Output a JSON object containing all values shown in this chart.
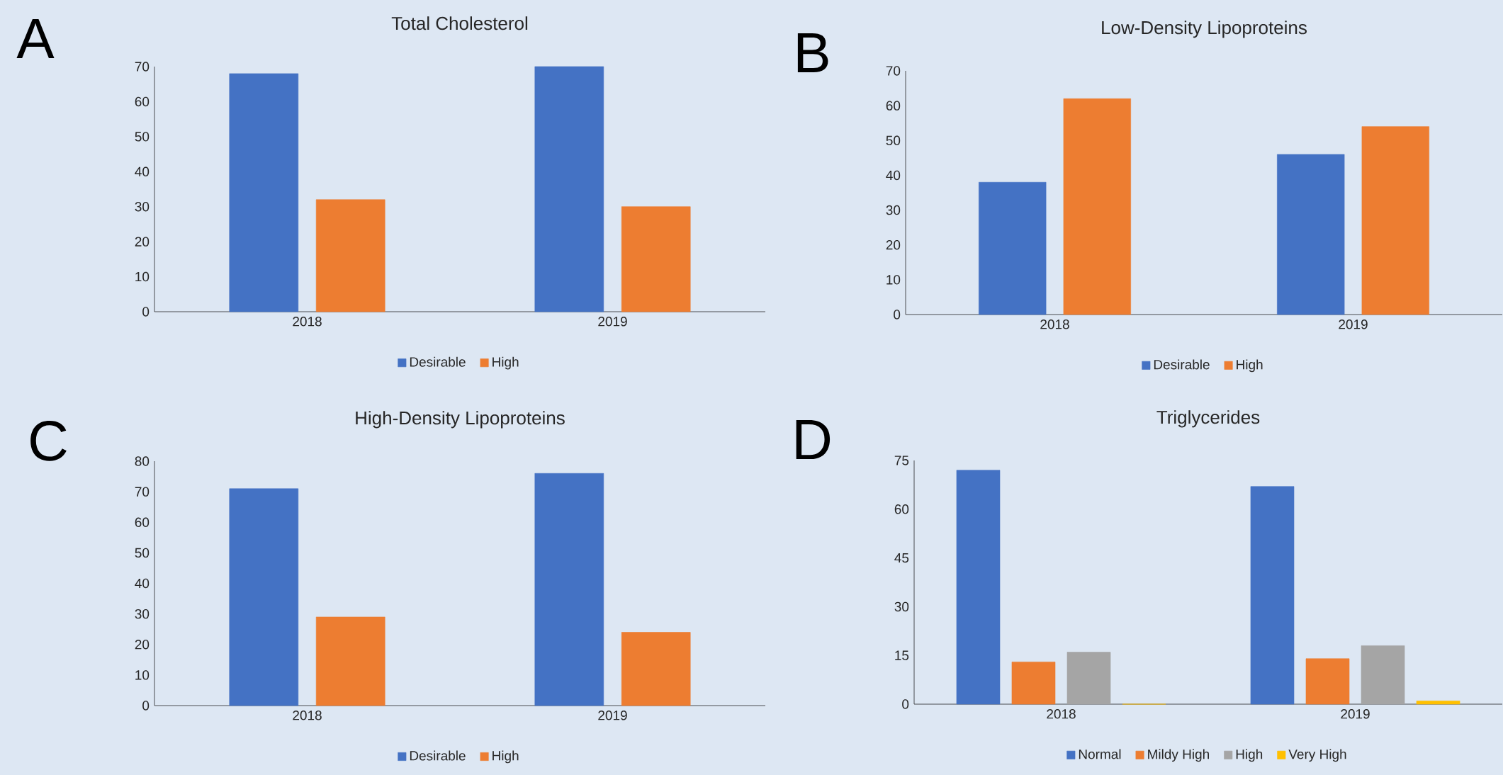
{
  "chart_data": [
    {
      "type": "bar",
      "title": "Total Cholesterol",
      "annotations": [
        "A"
      ],
      "categories": [
        "2018",
        "2019"
      ],
      "ylim": [
        0,
        70
      ],
      "yticks": [
        0,
        10,
        20,
        30,
        40,
        50,
        60,
        70
      ],
      "legend": "bottom",
      "series": [
        {
          "name": "Desirable",
          "color": "#4472c4",
          "values": [
            68,
            70
          ]
        },
        {
          "name": "High",
          "color": "#ed7d31",
          "values": [
            32,
            30
          ]
        }
      ]
    },
    {
      "type": "bar",
      "title": "Low-Density Lipoproteins",
      "annotations": [
        "B"
      ],
      "categories": [
        "2018",
        "2019"
      ],
      "ylim": [
        0,
        70
      ],
      "yticks": [
        0,
        10,
        20,
        30,
        40,
        50,
        60,
        70
      ],
      "legend": "bottom",
      "series": [
        {
          "name": "Desirable",
          "color": "#4472c4",
          "values": [
            38,
            46
          ]
        },
        {
          "name": "High",
          "color": "#ed7d31",
          "values": [
            62,
            54
          ]
        }
      ]
    },
    {
      "type": "bar",
      "title": "High-Density Lipoproteins",
      "annotations": [
        "C"
      ],
      "categories": [
        "2018",
        "2019"
      ],
      "ylim": [
        0,
        80
      ],
      "yticks": [
        0,
        10,
        20,
        30,
        40,
        50,
        60,
        70,
        80
      ],
      "legend": "bottom",
      "series": [
        {
          "name": "Desirable",
          "color": "#4472c4",
          "values": [
            71,
            76
          ]
        },
        {
          "name": "High",
          "color": "#ed7d31",
          "values": [
            29,
            24
          ]
        }
      ]
    },
    {
      "type": "bar",
      "title": "Triglycerides",
      "annotations": [
        "D"
      ],
      "categories": [
        "2018",
        "2019"
      ],
      "ylim": [
        0,
        75
      ],
      "yticks": [
        0,
        15,
        30,
        45,
        60,
        75
      ],
      "legend": "bottom",
      "series": [
        {
          "name": "Normal",
          "color": "#4472c4",
          "values": [
            72,
            67
          ]
        },
        {
          "name": "Mildy High",
          "color": "#ed7d31",
          "values": [
            13,
            14
          ]
        },
        {
          "name": "High",
          "color": "#a5a5a5",
          "values": [
            16,
            18
          ]
        },
        {
          "name": "Very High",
          "color": "#ffc000",
          "values": [
            0,
            1
          ]
        }
      ]
    }
  ]
}
